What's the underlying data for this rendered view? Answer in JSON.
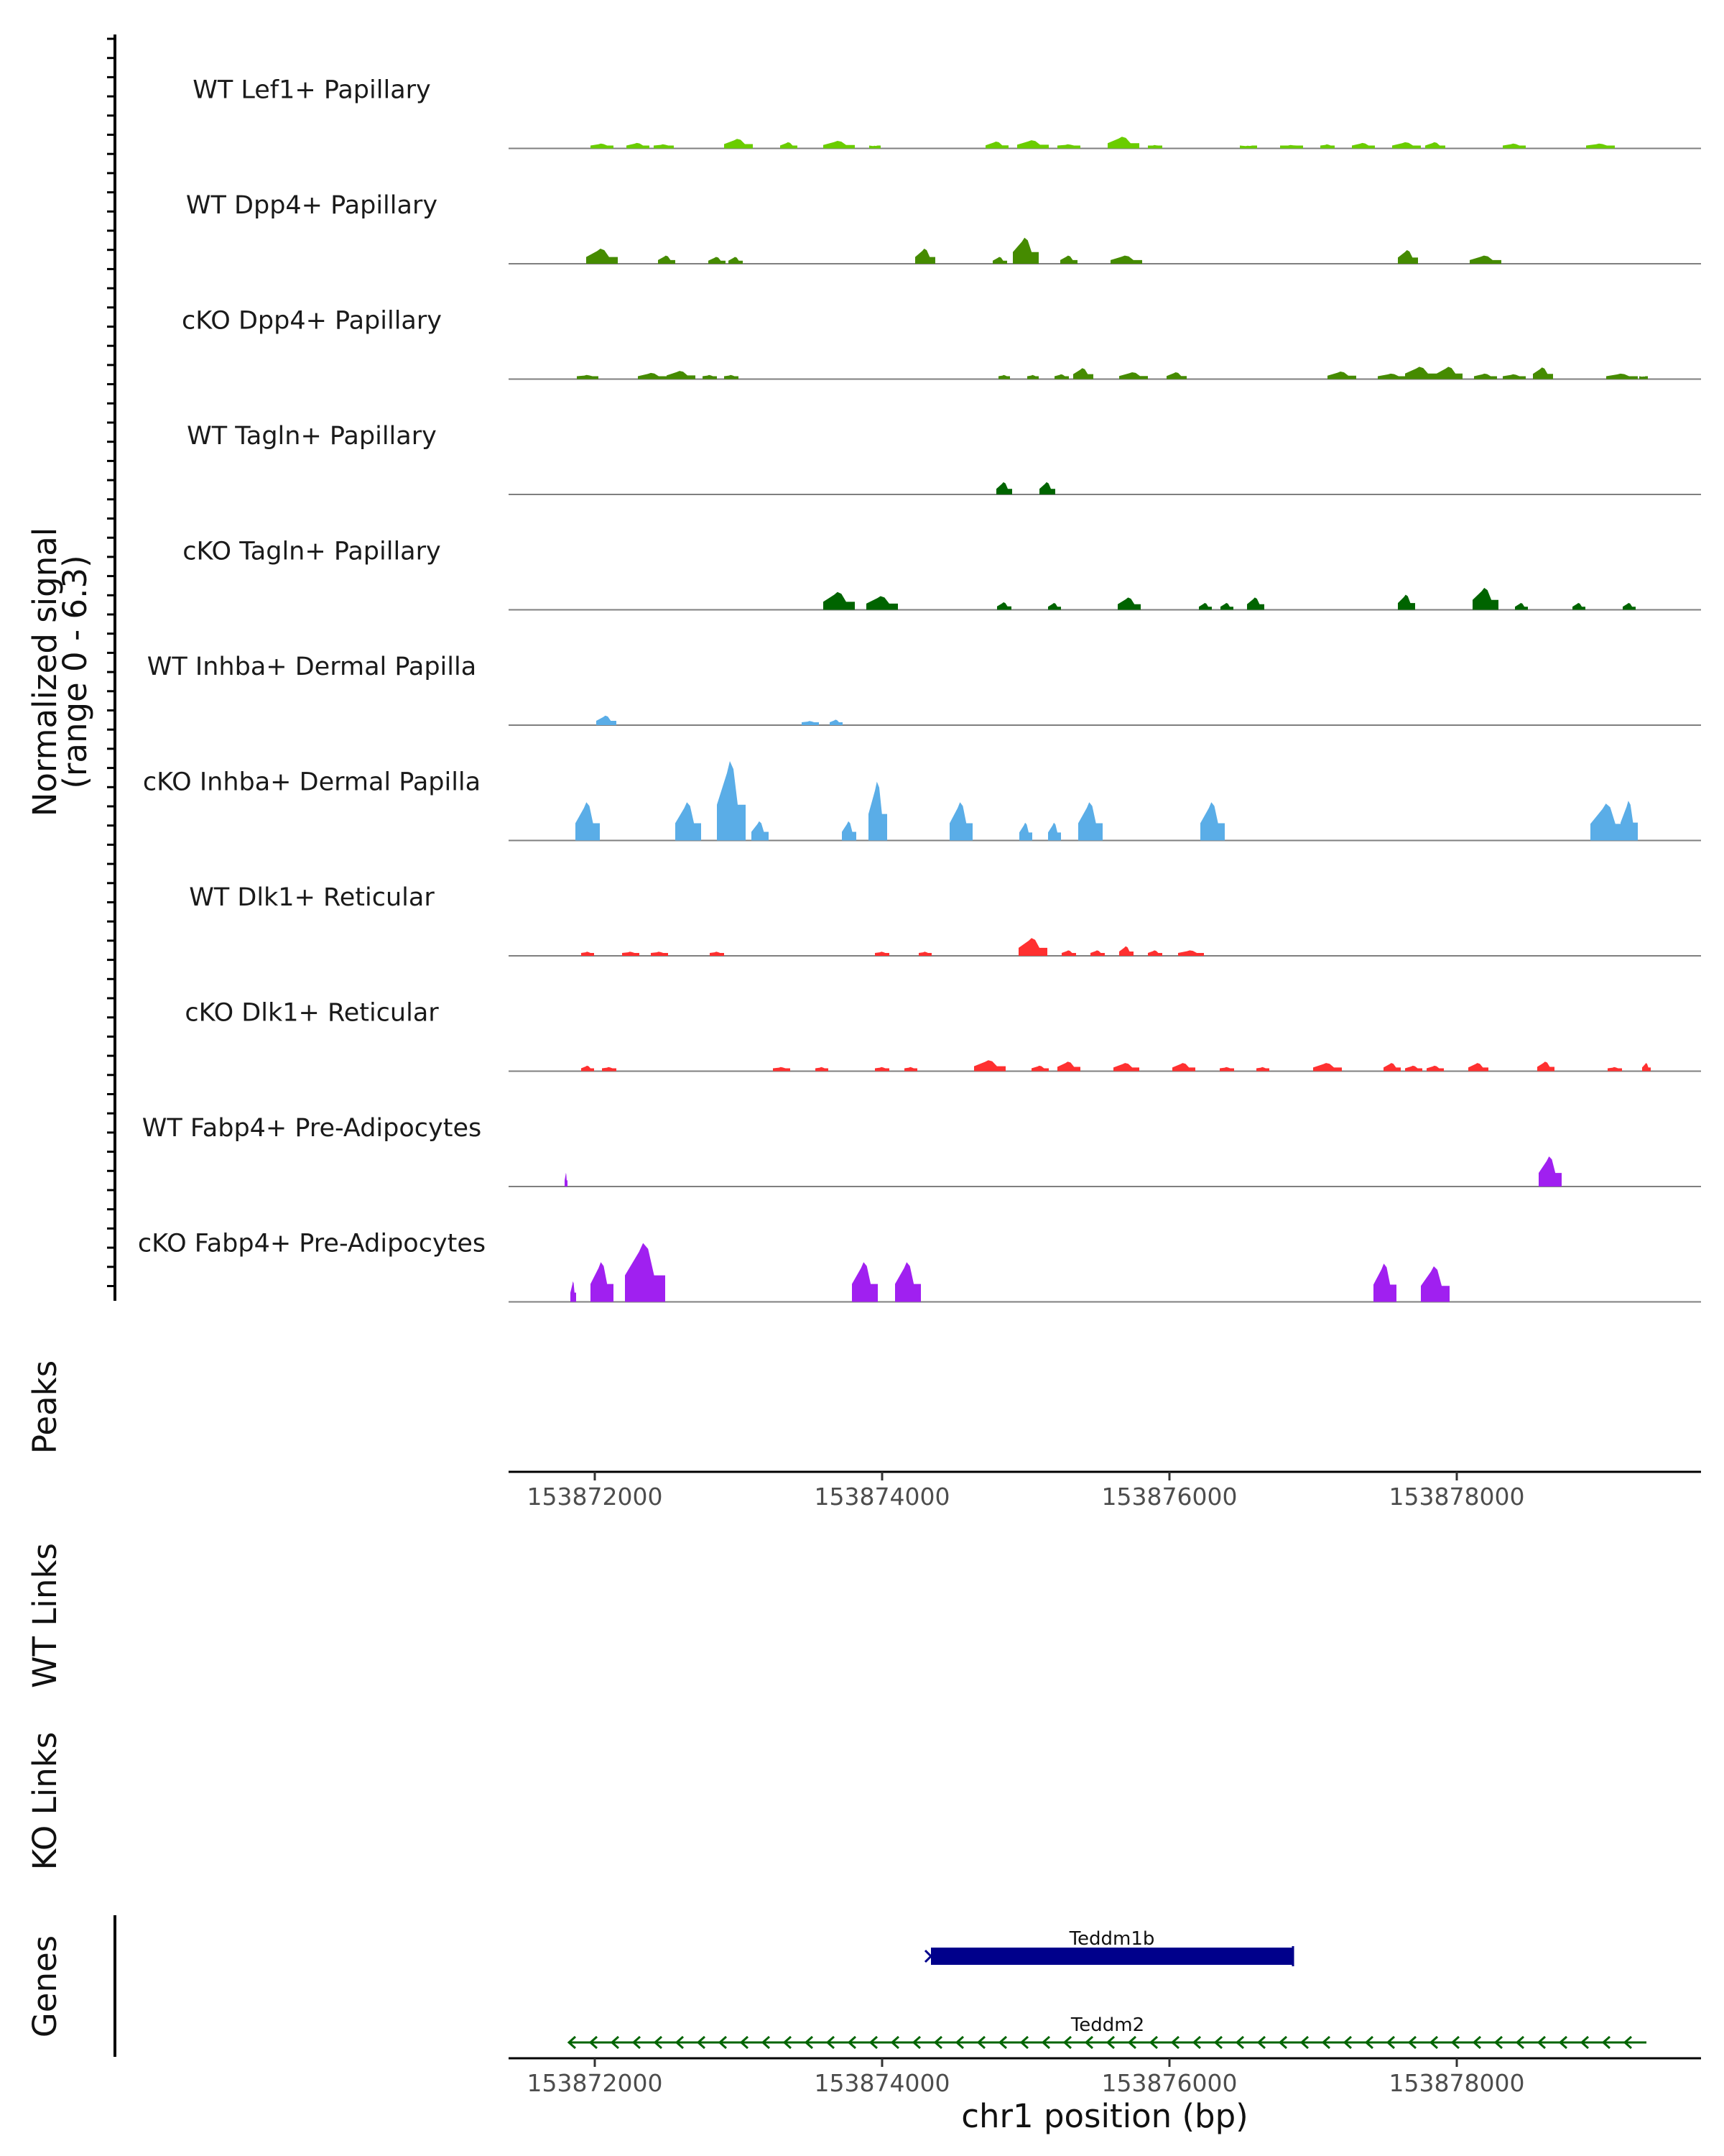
{
  "chart_data": {
    "type": "area",
    "title": "",
    "ylabel": "Normalized signal",
    "ylabel_range": "(range 0 - 6.3)",
    "ylim": [
      0,
      6.3
    ],
    "xlim": [
      153871400,
      153879700
    ],
    "xlabel": "chr1 position (bp)",
    "x_ticks": [
      153872000,
      153874000,
      153876000,
      153878000
    ],
    "x_tick_labels": [
      "153872000",
      "153874000",
      "153876000",
      "153878000"
    ],
    "tracks": [
      {
        "name": "WT Lef1+ Papillary",
        "color": "#6acd00",
        "peaks": [
          [
            153872050,
            0.35,
            160
          ],
          [
            153872300,
            0.4,
            160
          ],
          [
            153872480,
            0.3,
            140
          ],
          [
            153873000,
            0.7,
            200
          ],
          [
            153873350,
            0.45,
            120
          ],
          [
            153873700,
            0.55,
            220
          ],
          [
            153873950,
            0.2,
            80
          ],
          [
            153874800,
            0.5,
            160
          ],
          [
            153875050,
            0.6,
            220
          ],
          [
            153875300,
            0.3,
            160
          ],
          [
            153875680,
            0.85,
            220
          ],
          [
            153875900,
            0.25,
            100
          ],
          [
            153876550,
            0.2,
            120
          ],
          [
            153876850,
            0.25,
            160
          ],
          [
            153877100,
            0.3,
            100
          ],
          [
            153877350,
            0.4,
            160
          ],
          [
            153877650,
            0.45,
            200
          ],
          [
            153877850,
            0.45,
            140
          ],
          [
            153878400,
            0.35,
            160
          ],
          [
            153879000,
            0.35,
            200
          ]
        ]
      },
      {
        "name": "WT Dpp4+ Papillary",
        "color": "#458b00",
        "peaks": [
          [
            153872050,
            1.1,
            220
          ],
          [
            153872500,
            0.6,
            120
          ],
          [
            153872850,
            0.5,
            120
          ],
          [
            153872980,
            0.5,
            100
          ],
          [
            153874300,
            1.1,
            140
          ],
          [
            153874820,
            0.5,
            100
          ],
          [
            153875000,
            1.9,
            180
          ],
          [
            153875300,
            0.6,
            120
          ],
          [
            153875700,
            0.6,
            220
          ],
          [
            153877660,
            1.0,
            140
          ],
          [
            153878200,
            0.6,
            220
          ]
        ]
      },
      {
        "name": "cKO Dpp4+ Papillary",
        "color": "#458b00",
        "peaks": [
          [
            153871950,
            0.3,
            150
          ],
          [
            153872400,
            0.45,
            200
          ],
          [
            153872600,
            0.6,
            200
          ],
          [
            153872800,
            0.3,
            100
          ],
          [
            153872950,
            0.3,
            100
          ],
          [
            153874850,
            0.3,
            80
          ],
          [
            153875050,
            0.3,
            80
          ],
          [
            153875250,
            0.35,
            100
          ],
          [
            153875400,
            0.8,
            140
          ],
          [
            153875750,
            0.5,
            200
          ],
          [
            153876050,
            0.5,
            140
          ],
          [
            153877200,
            0.55,
            200
          ],
          [
            153877550,
            0.4,
            200
          ],
          [
            153877750,
            0.9,
            220
          ],
          [
            153877950,
            0.9,
            180
          ],
          [
            153878200,
            0.4,
            160
          ],
          [
            153878400,
            0.35,
            160
          ],
          [
            153878600,
            0.85,
            140
          ],
          [
            153879150,
            0.4,
            220
          ],
          [
            153879300,
            0.2,
            60
          ]
        ]
      },
      {
        "name": "WT Tagln+ Papillary",
        "color": "#006400",
        "peaks": [
          [
            153874850,
            0.9,
            110
          ],
          [
            153875150,
            0.9,
            110
          ]
        ]
      },
      {
        "name": "cKO Tagln+ Papillary",
        "color": "#006400",
        "peaks": [
          [
            153873700,
            1.3,
            220
          ],
          [
            153874000,
            1.0,
            220
          ],
          [
            153874850,
            0.55,
            100
          ],
          [
            153875200,
            0.5,
            90
          ],
          [
            153875720,
            0.9,
            160
          ],
          [
            153876250,
            0.5,
            90
          ],
          [
            153876400,
            0.5,
            90
          ],
          [
            153876600,
            0.9,
            120
          ],
          [
            153877650,
            1.1,
            120
          ],
          [
            153878200,
            1.6,
            180
          ],
          [
            153878450,
            0.5,
            90
          ],
          [
            153878850,
            0.5,
            90
          ],
          [
            153879200,
            0.5,
            90
          ]
        ]
      },
      {
        "name": "WT Inhba+ Dermal Papilla",
        "color": "#5aade7",
        "peaks": [
          [
            153872080,
            0.7,
            140
          ],
          [
            153873500,
            0.3,
            120
          ],
          [
            153873680,
            0.4,
            90
          ]
        ]
      },
      {
        "name": "cKO Inhba+ Dermal Papilla",
        "color": "#5aade7",
        "peaks": [
          [
            153871950,
            2.8,
            170
          ],
          [
            153872650,
            2.8,
            180
          ],
          [
            153872950,
            5.8,
            200
          ],
          [
            153873150,
            1.4,
            120
          ],
          [
            153873770,
            1.4,
            100
          ],
          [
            153873970,
            4.3,
            130
          ],
          [
            153874550,
            2.8,
            160
          ],
          [
            153875000,
            1.3,
            90
          ],
          [
            153875200,
            1.3,
            90
          ],
          [
            153875450,
            2.8,
            170
          ],
          [
            153876300,
            2.8,
            170
          ],
          [
            153879050,
            2.7,
            240
          ],
          [
            153879200,
            2.9,
            120
          ]
        ]
      },
      {
        "name": "WT Dlk1+ Reticular",
        "color": "#ff3030",
        "peaks": [
          [
            153871950,
            0.3,
            90
          ],
          [
            153872250,
            0.3,
            120
          ],
          [
            153872450,
            0.3,
            120
          ],
          [
            153872850,
            0.3,
            100
          ],
          [
            153874000,
            0.3,
            100
          ],
          [
            153874300,
            0.3,
            90
          ],
          [
            153875050,
            1.3,
            200
          ],
          [
            153875300,
            0.4,
            100
          ],
          [
            153875500,
            0.4,
            100
          ],
          [
            153875700,
            0.7,
            100
          ],
          [
            153875900,
            0.4,
            100
          ],
          [
            153876150,
            0.4,
            180
          ]
        ]
      },
      {
        "name": "cKO Dlk1+ Reticular",
        "color": "#ff3030",
        "peaks": [
          [
            153871950,
            0.4,
            90
          ],
          [
            153872100,
            0.3,
            100
          ],
          [
            153873300,
            0.3,
            120
          ],
          [
            153873580,
            0.3,
            90
          ],
          [
            153874000,
            0.3,
            100
          ],
          [
            153874200,
            0.3,
            90
          ],
          [
            153874750,
            0.8,
            220
          ],
          [
            153875100,
            0.4,
            120
          ],
          [
            153875300,
            0.7,
            160
          ],
          [
            153875700,
            0.6,
            180
          ],
          [
            153876100,
            0.6,
            160
          ],
          [
            153876400,
            0.3,
            100
          ],
          [
            153876650,
            0.3,
            90
          ],
          [
            153877100,
            0.6,
            200
          ],
          [
            153877550,
            0.6,
            120
          ],
          [
            153877700,
            0.4,
            120
          ],
          [
            153877850,
            0.4,
            120
          ],
          [
            153878150,
            0.6,
            140
          ],
          [
            153878620,
            0.7,
            120
          ],
          [
            153879100,
            0.3,
            100
          ],
          [
            153879320,
            0.6,
            60
          ]
        ]
      },
      {
        "name": "WT Fabp4+ Pre-Adipocytes",
        "color": "#a020f0",
        "peaks": [
          [
            153871800,
            1.0,
            20
          ],
          [
            153878650,
            2.2,
            160
          ]
        ]
      },
      {
        "name": "cKO Fabp4+ Pre-Adipocytes",
        "color": "#a020f0",
        "peaks": [
          [
            153871850,
            1.5,
            40
          ],
          [
            153872050,
            2.9,
            160
          ],
          [
            153872350,
            4.3,
            280
          ],
          [
            153873880,
            2.9,
            180
          ],
          [
            153874180,
            2.9,
            180
          ],
          [
            153877500,
            2.8,
            160
          ],
          [
            153877850,
            2.6,
            200
          ]
        ]
      }
    ],
    "other_tracks": [
      {
        "name": "Peaks"
      },
      {
        "name": "WT Links"
      },
      {
        "name": "KO Links"
      },
      {
        "name": "Genes"
      }
    ],
    "genes": [
      {
        "name": "Teddm1b",
        "start": 153874340,
        "end": 153876860,
        "strand": "+",
        "color": "#00008b"
      },
      {
        "name": "Teddm2",
        "start": 153871820,
        "end": 153879320,
        "strand": "-",
        "color": "#006400"
      }
    ]
  }
}
